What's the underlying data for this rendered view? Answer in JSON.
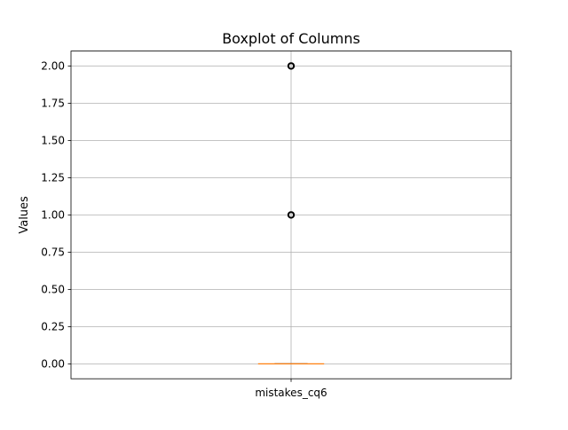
{
  "chart_data": {
    "type": "boxplot",
    "title": "Boxplot of Columns",
    "xlabel": "",
    "ylabel": "Values",
    "categories": [
      "mistakes_cq6"
    ],
    "boxes": [
      {
        "name": "mistakes_cq6",
        "min": 0,
        "q1": 0,
        "median": 0,
        "q3": 0,
        "max": 0,
        "outliers": [
          1,
          2
        ]
      }
    ],
    "ylim": [
      -0.1,
      2.1
    ],
    "yticks": [
      0.0,
      0.25,
      0.5,
      0.75,
      1.0,
      1.25,
      1.5,
      1.75,
      2.0
    ],
    "ytick_labels": [
      "0.00",
      "0.25",
      "0.50",
      "0.75",
      "1.00",
      "1.25",
      "1.50",
      "1.75",
      "2.00"
    ],
    "grid": true,
    "colors": {
      "median": "#ff7f0e",
      "box": "#000000",
      "grid": "#b0b0b0",
      "outlier_edge": "#000000"
    }
  }
}
